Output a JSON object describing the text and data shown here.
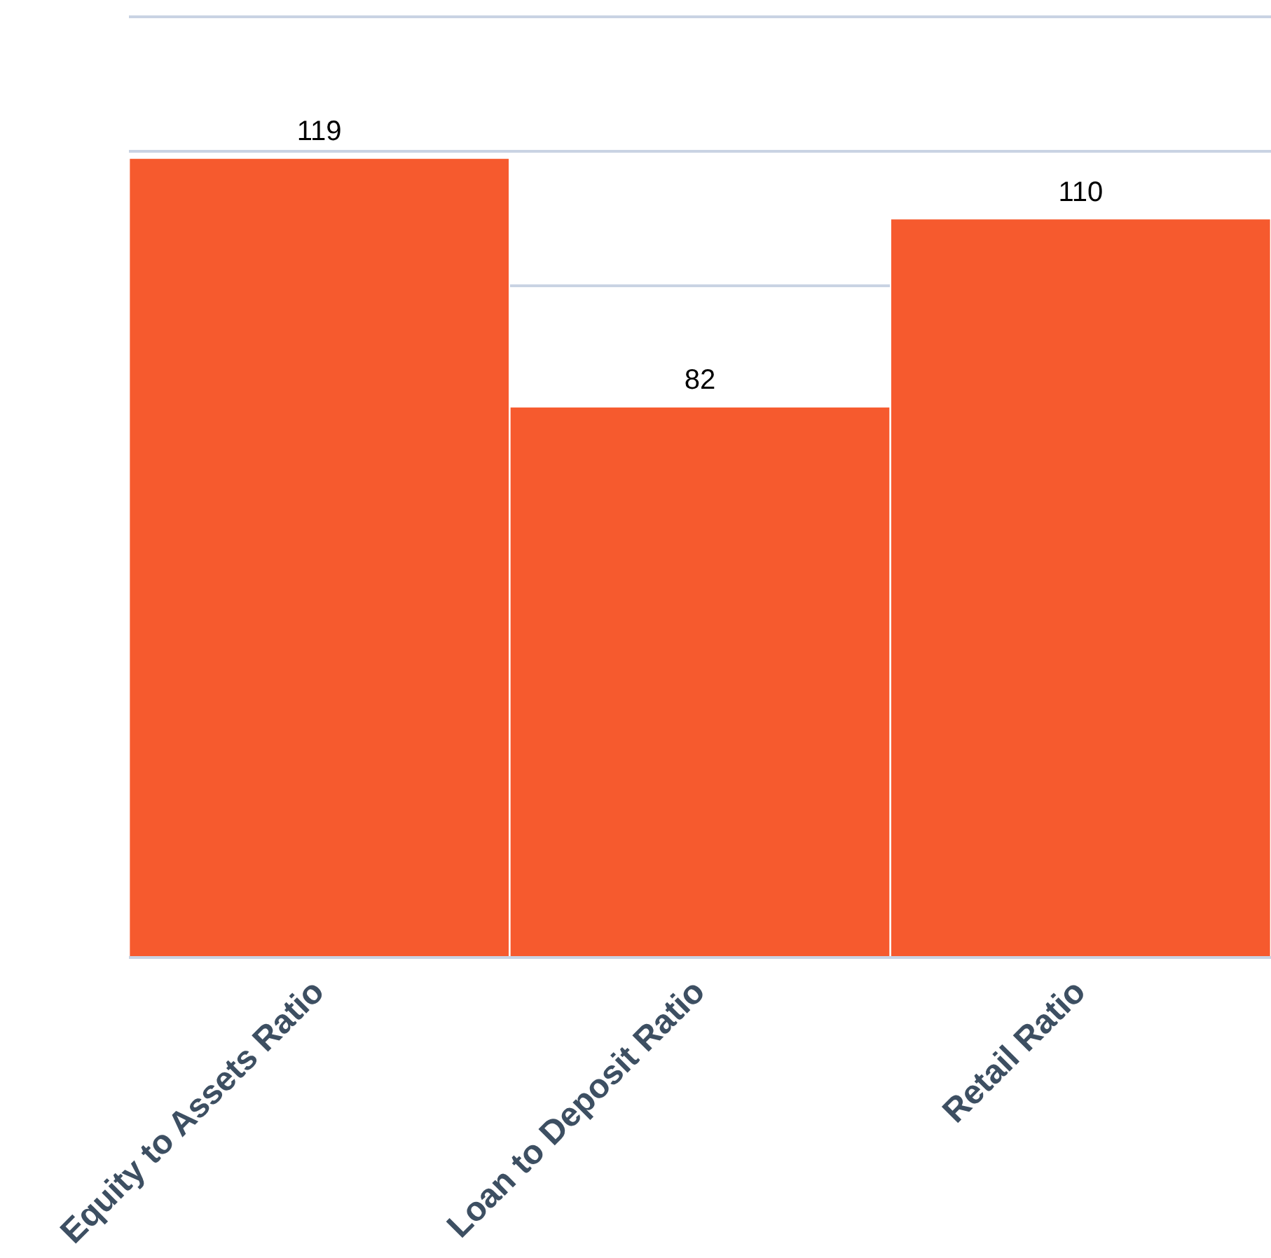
{
  "chart_data": {
    "type": "bar",
    "categories": [
      "Equity to Assets Ratio",
      "Loan to Deposit Ratio",
      "Retail Ratio"
    ],
    "values": [
      119,
      82,
      110
    ],
    "color": "#f65a2e",
    "ylim": [
      0,
      140
    ],
    "yticks": [
      {
        "value": 0,
        "label": null
      },
      {
        "value": 100,
        "label": null
      },
      {
        "value": 120,
        "label": null
      },
      {
        "value": 140,
        "label": null
      }
    ],
    "grid": "y",
    "tick_labels": "x",
    "data_labels": true,
    "legend": false
  }
}
